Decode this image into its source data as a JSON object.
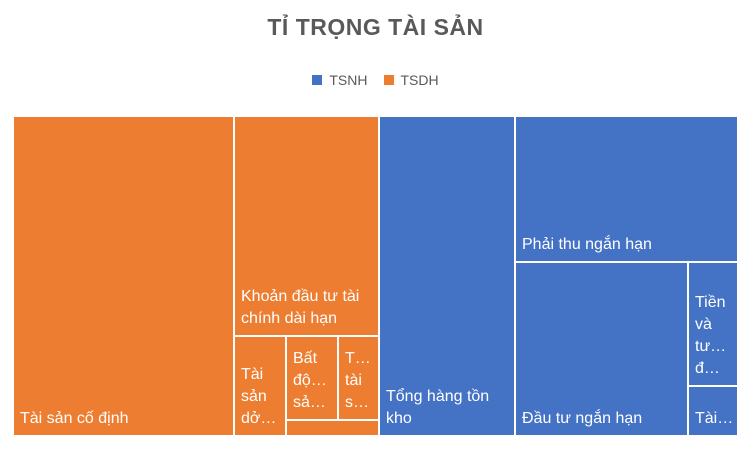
{
  "chart_data": {
    "type": "treemap",
    "title": "TỈ TRỌNG TÀI SẢN",
    "legend_position": "top",
    "colors": {
      "TSNH": "#4472C4",
      "TSDH": "#ED7D31"
    },
    "series": [
      {
        "name": "TSNH",
        "color": "#4472C4"
      },
      {
        "name": "TSDH",
        "color": "#ED7D31"
      }
    ],
    "items": [
      {
        "label": "Tài sản cố định",
        "display": "Tài sản cố định",
        "group": "TSDH",
        "value": 22.9
      },
      {
        "label": "Khoản đầu tư tài chính dài hạn",
        "display": "Khoản đầu tư tài chính dài hạn",
        "group": "TSDH",
        "value": 6.9
      },
      {
        "label": "Tài sản dở dang dài hạn",
        "display": "Tài sản dở…",
        "group": "TSDH",
        "value": 2.4
      },
      {
        "label": "Bất động sản đầu tư",
        "display": "Bất độ… sả…",
        "group": "TSDH",
        "value": 2.1
      },
      {
        "label": "Tài sản dài hạn khác",
        "display": "T… tài s…",
        "group": "TSDH",
        "value": 1.6
      },
      {
        "label": "",
        "display": "",
        "group": "TSDH",
        "value": 0.7
      },
      {
        "label": "Tổng hàng tồn kho",
        "display": "Tổng hàng tồn kho",
        "group": "TSNH",
        "value": 14.0
      },
      {
        "label": "Phải thu ngắn hạn",
        "display": "Phải thu ngắn hạn",
        "group": "TSNH",
        "value": 14.3
      },
      {
        "label": "Đầu tư ngắn hạn",
        "display": "Đầu tư ngắn hạn",
        "group": "TSNH",
        "value": 13.2
      },
      {
        "label": "Tiền và tương đương tiền",
        "display": "Tiền và tư… đ…",
        "group": "TSNH",
        "value": 2.3
      },
      {
        "label": "Tài sản ngắn hạn khác",
        "display": "Tài…",
        "group": "TSNH",
        "value": 1.7
      }
    ]
  }
}
